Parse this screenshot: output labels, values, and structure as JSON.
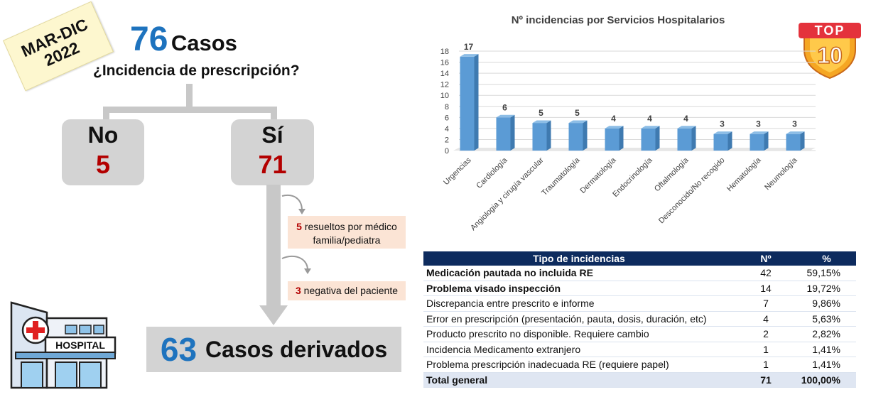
{
  "badge": {
    "line1": "MAR-DIC",
    "line2": "2022"
  },
  "header": {
    "count": "76",
    "count_label": "Casos",
    "question": "¿Incidencia de prescripción?"
  },
  "branches": {
    "no": {
      "label": "No",
      "value": "5"
    },
    "si": {
      "label": "Sí",
      "value": "71"
    }
  },
  "notes": [
    {
      "count": "5",
      "text": "resueltos por médico familia/pediatra"
    },
    {
      "count": "3",
      "text": "negativa del paciente"
    }
  ],
  "result": {
    "count": "63",
    "label": "Casos derivados"
  },
  "logo": {
    "sign": "HOSPITAL",
    "top_badge": "TOP",
    "top_number": "10"
  },
  "chart_data": {
    "type": "bar",
    "title": "Nº incidencias por Servicios Hospitalarios",
    "categories": [
      "Urgencias",
      "Cardiología",
      "Angiologia y cirugía vascular",
      "Traumatología",
      "Dermatología",
      "Endocrinología",
      "Oftalmología",
      "Desconocido/No recogido",
      "Hematología",
      "Neumología"
    ],
    "values": [
      17,
      6,
      5,
      5,
      4,
      4,
      4,
      3,
      3,
      3
    ],
    "ylim": [
      0,
      18
    ],
    "yticks": [
      0,
      2,
      4,
      6,
      8,
      10,
      12,
      14,
      16,
      18
    ],
    "grid": true,
    "bar_color": "#5b9bd5"
  },
  "table": {
    "headers": [
      "Tipo de incidencias",
      "Nº",
      "%"
    ],
    "rows": [
      {
        "desc": "Medicación pautada no incluida RE",
        "n": "42",
        "pct": "59,15%",
        "bold": true
      },
      {
        "desc": "Problema visado inspección",
        "n": "14",
        "pct": "19,72%",
        "bold": true
      },
      {
        "desc": "Discrepancia entre prescrito e informe",
        "n": "7",
        "pct": "9,86%",
        "bold": false
      },
      {
        "desc": "Error en prescripción (presentación, pauta, dosis, duración, etc)",
        "n": "4",
        "pct": "5,63%",
        "bold": false
      },
      {
        "desc": "Producto prescrito no disponible. Requiere cambio",
        "n": "2",
        "pct": "2,82%",
        "bold": false
      },
      {
        "desc": "Incidencia Medicamento extranjero",
        "n": "1",
        "pct": "1,41%",
        "bold": false
      },
      {
        "desc": "Problema prescripción inadecuada RE (requiere papel)",
        "n": "1",
        "pct": "1,41%",
        "bold": false
      }
    ],
    "total": {
      "desc": "Total general",
      "n": "71",
      "pct": "100,00%"
    }
  }
}
